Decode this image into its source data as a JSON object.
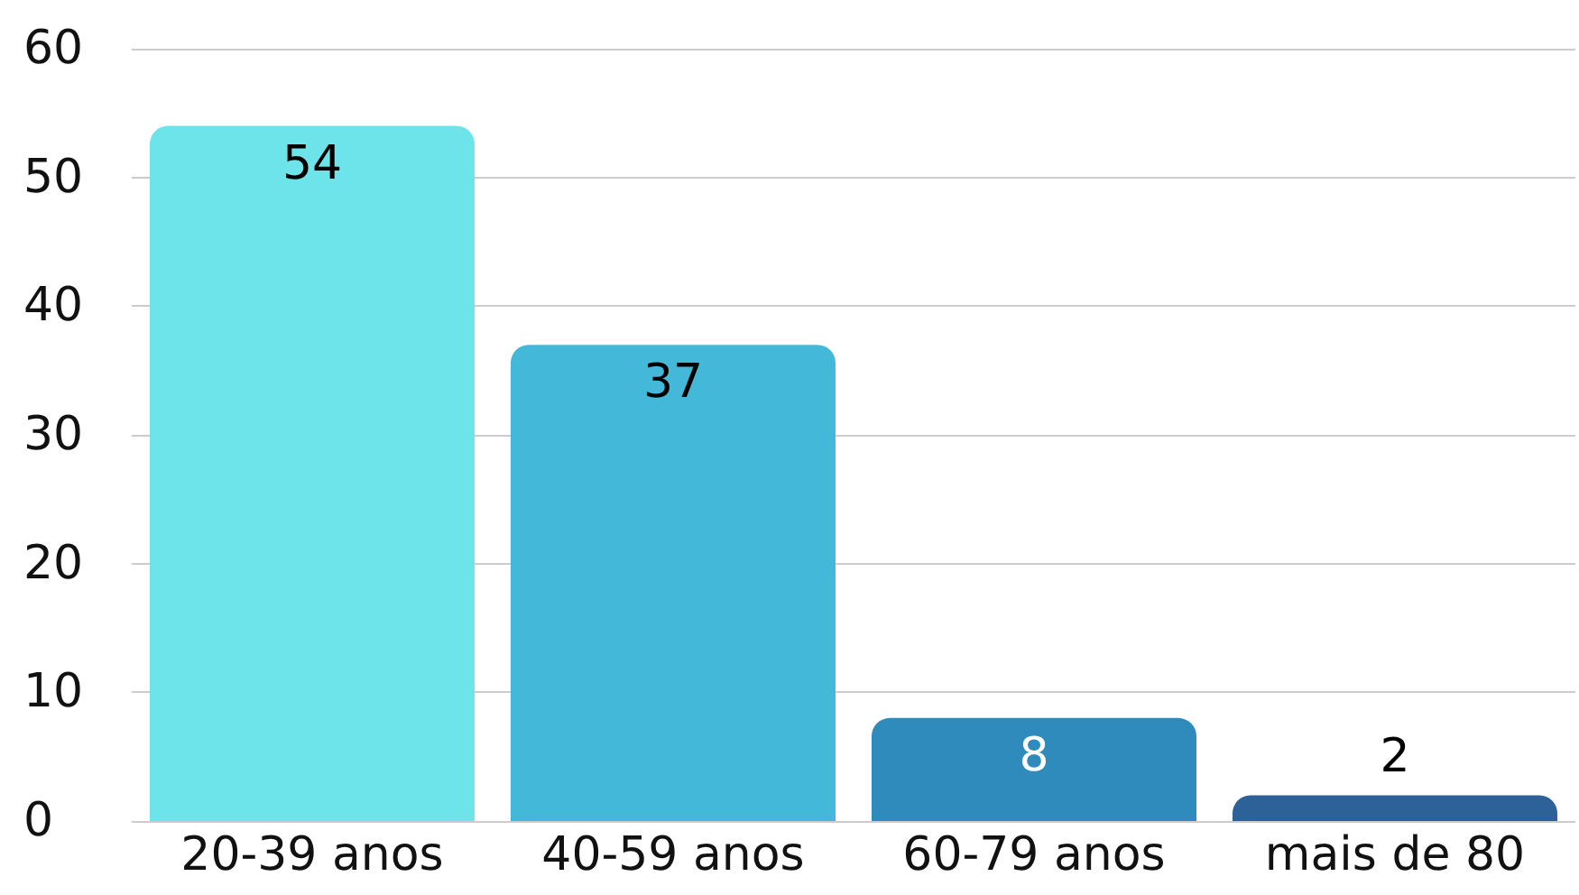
{
  "chart_data": {
    "type": "bar",
    "categories": [
      "20-39 anos",
      "40-59 anos",
      "60-79 anos",
      "mais de 80"
    ],
    "values": [
      54,
      37,
      8,
      2
    ],
    "colors": [
      "#6ce4e9",
      "#44b8d8",
      "#2e8bbb",
      "#2d6299"
    ],
    "ylim": [
      0,
      60
    ],
    "yticks": [
      0,
      10,
      20,
      30,
      40,
      50,
      60
    ],
    "grid": "y",
    "data_labels": true
  }
}
